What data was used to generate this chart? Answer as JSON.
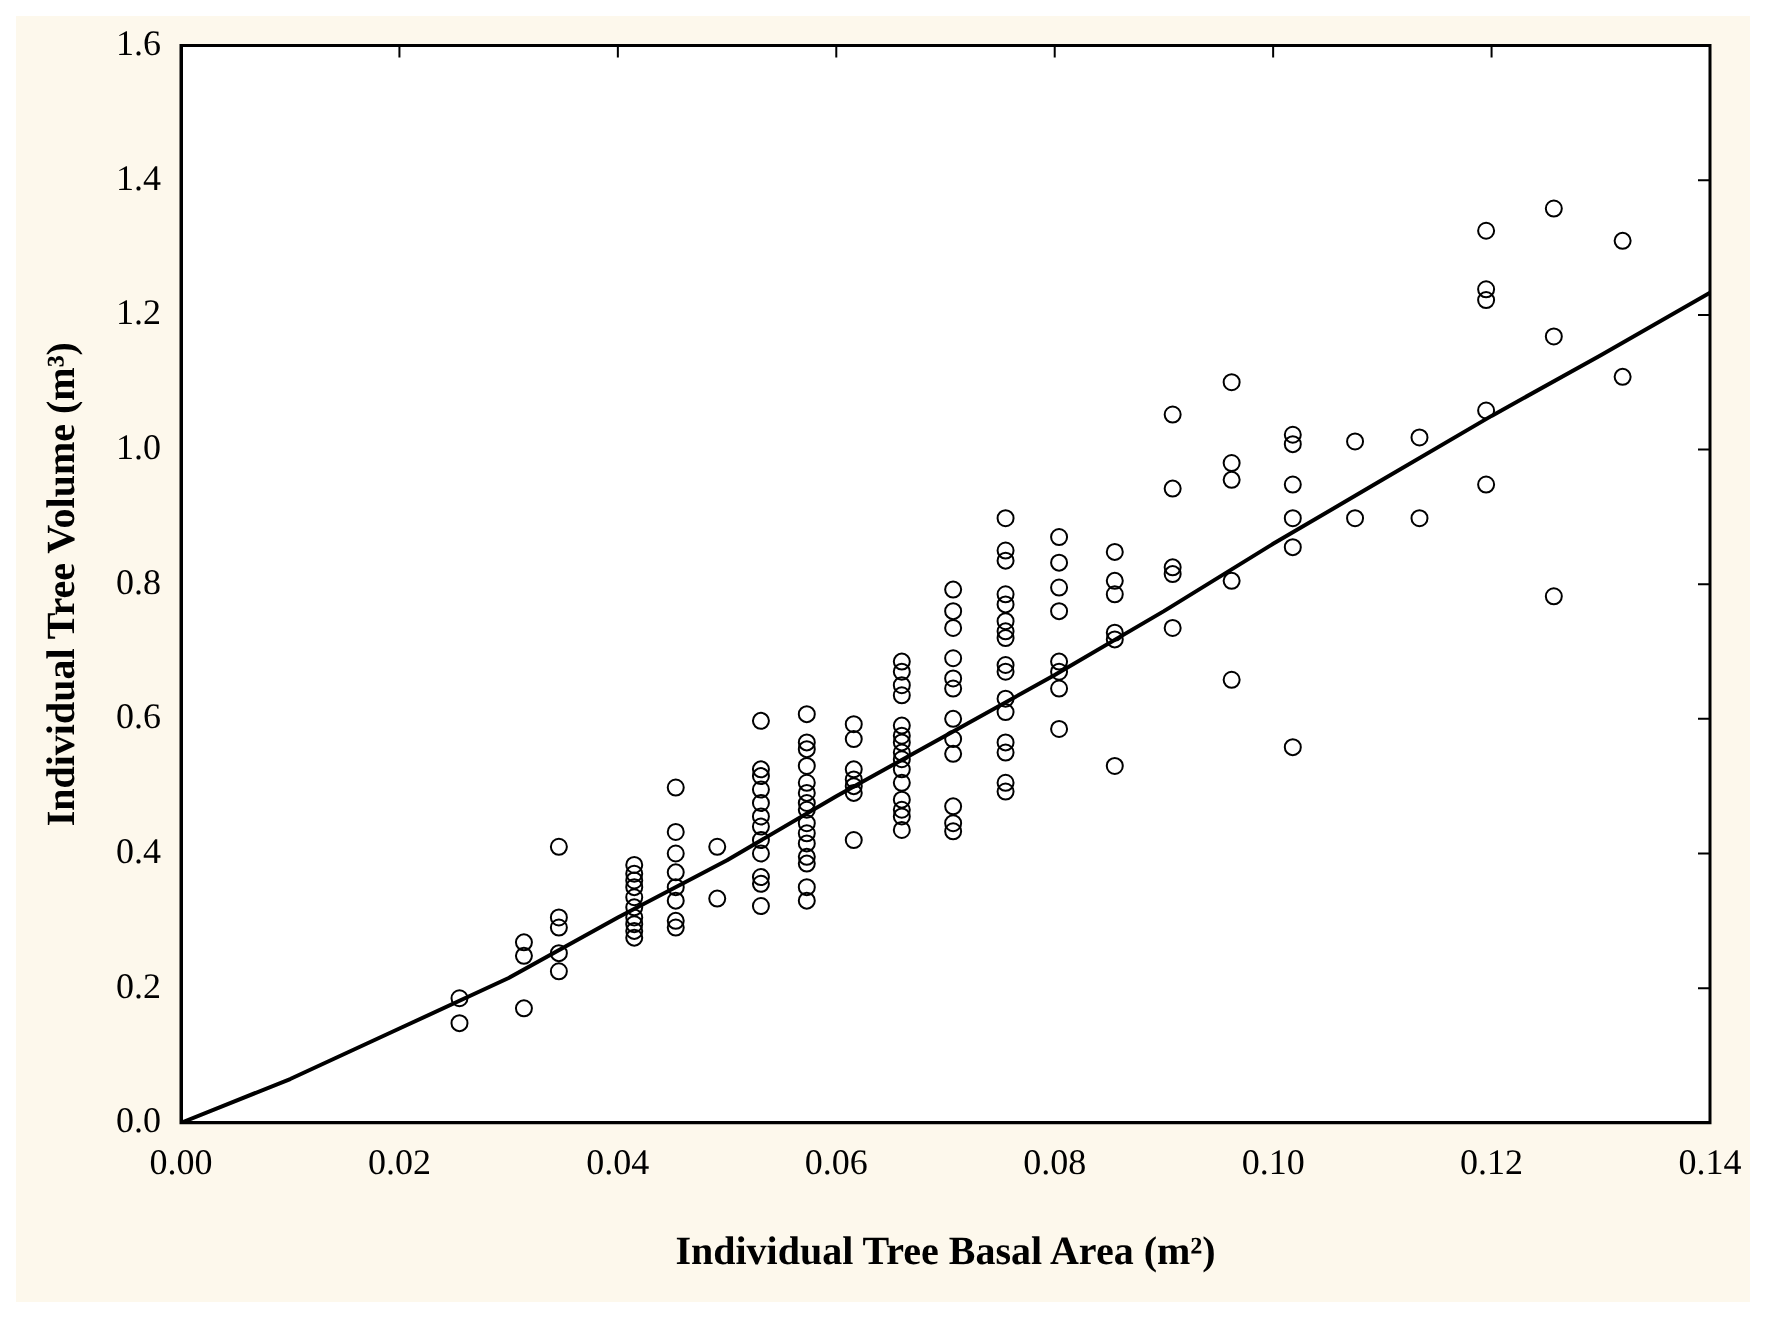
{
  "chart_data": {
    "type": "scatter",
    "xlabel": "Individual Tree Basal Area (m²)",
    "ylabel": "Individual Tree Volume (m³)",
    "xlim": [
      0,
      0.14
    ],
    "xticks": [
      {
        "value": 0,
        "label": "0.00"
      },
      {
        "value": 0.02,
        "label": "0.02"
      },
      {
        "value": 0.04,
        "label": "0.04"
      },
      {
        "value": 0.06,
        "label": "0.06"
      },
      {
        "value": 0.08,
        "label": "0.08"
      },
      {
        "value": 0.1,
        "label": "0.10"
      },
      {
        "value": 0.12,
        "label": "0.12"
      },
      {
        "value": 0.14,
        "label": "0.14"
      }
    ],
    "ylim": [
      0,
      1.6
    ],
    "yticks": [
      {
        "value": 0,
        "label": "0.0"
      },
      {
        "value": 0.2,
        "label": "0.2"
      },
      {
        "value": 0.4,
        "label": "0.4"
      },
      {
        "value": 0.6,
        "label": "0.6"
      },
      {
        "value": 0.8,
        "label": "0.8"
      },
      {
        "value": 1,
        "label": "1.0"
      },
      {
        "value": 1.2,
        "label": "1.2"
      },
      {
        "value": 1.4,
        "label": "1.4"
      },
      {
        "value": 1.6,
        "label": "1.6"
      }
    ],
    "grid": false,
    "legend": false,
    "marker": "circle",
    "series": [
      {
        "type": "scatter",
        "color": "#000000",
        "x": [
          0.0255,
          0.0255,
          0.0314,
          0.0314,
          0.0314,
          0.0346,
          0.0346,
          0.0346,
          0.0346,
          0.0346,
          0.0415,
          0.0415,
          0.0415,
          0.0415,
          0.0415,
          0.0415,
          0.0415,
          0.0415,
          0.0415,
          0.0415,
          0.0453,
          0.0453,
          0.0453,
          0.0453,
          0.0453,
          0.0453,
          0.0453,
          0.0453,
          0.0491,
          0.0491,
          0.0531,
          0.0531,
          0.0531,
          0.0531,
          0.0531,
          0.0531,
          0.0531,
          0.0531,
          0.0531,
          0.0531,
          0.0531,
          0.0531,
          0.0573,
          0.0573,
          0.0573,
          0.0573,
          0.0573,
          0.0573,
          0.0573,
          0.0573,
          0.0573,
          0.0573,
          0.0573,
          0.0573,
          0.0573,
          0.0573,
          0.0573,
          0.0616,
          0.0616,
          0.0616,
          0.0616,
          0.0616,
          0.0616,
          0.0616,
          0.066,
          0.066,
          0.066,
          0.066,
          0.066,
          0.066,
          0.066,
          0.066,
          0.066,
          0.066,
          0.066,
          0.066,
          0.066,
          0.066,
          0.066,
          0.0707,
          0.0707,
          0.0707,
          0.0707,
          0.0707,
          0.0707,
          0.0707,
          0.0707,
          0.0707,
          0.0707,
          0.0707,
          0.0707,
          0.0755,
          0.0755,
          0.0755,
          0.0755,
          0.0755,
          0.0755,
          0.0755,
          0.0755,
          0.0755,
          0.0755,
          0.0755,
          0.0755,
          0.0755,
          0.0755,
          0.0755,
          0.0755,
          0.0804,
          0.0804,
          0.0804,
          0.0804,
          0.0804,
          0.0804,
          0.0804,
          0.0804,
          0.0855,
          0.0855,
          0.0855,
          0.0855,
          0.0855,
          0.0855,
          0.0908,
          0.0908,
          0.0908,
          0.0908,
          0.0908,
          0.0962,
          0.0962,
          0.0962,
          0.0962,
          0.0962,
          0.1018,
          0.1018,
          0.1018,
          0.1018,
          0.1018,
          0.1018,
          0.1075,
          0.1075,
          0.1134,
          0.1134,
          0.1195,
          0.1195,
          0.1195,
          0.1195,
          0.1195,
          0.1257,
          0.1257,
          0.1257,
          0.132,
          0.132
        ],
        "values": [
          0.185,
          0.148,
          0.268,
          0.248,
          0.17,
          0.41,
          0.305,
          0.29,
          0.252,
          0.225,
          0.383,
          0.37,
          0.36,
          0.35,
          0.335,
          0.32,
          0.305,
          0.295,
          0.285,
          0.275,
          0.498,
          0.432,
          0.4,
          0.372,
          0.35,
          0.33,
          0.3,
          0.29,
          0.41,
          0.333,
          0.597,
          0.525,
          0.515,
          0.495,
          0.475,
          0.455,
          0.44,
          0.42,
          0.4,
          0.365,
          0.355,
          0.322,
          0.607,
          0.565,
          0.555,
          0.53,
          0.505,
          0.49,
          0.475,
          0.465,
          0.445,
          0.43,
          0.415,
          0.395,
          0.385,
          0.35,
          0.33,
          0.592,
          0.57,
          0.525,
          0.51,
          0.5,
          0.49,
          0.42,
          0.685,
          0.67,
          0.65,
          0.635,
          0.59,
          0.575,
          0.565,
          0.55,
          0.54,
          0.525,
          0.505,
          0.48,
          0.465,
          0.455,
          0.435,
          0.792,
          0.76,
          0.735,
          0.69,
          0.66,
          0.645,
          0.6,
          0.57,
          0.548,
          0.47,
          0.445,
          0.433,
          0.898,
          0.85,
          0.835,
          0.785,
          0.77,
          0.745,
          0.73,
          0.72,
          0.68,
          0.67,
          0.63,
          0.61,
          0.565,
          0.55,
          0.505,
          0.492,
          0.87,
          0.832,
          0.795,
          0.76,
          0.685,
          0.67,
          0.645,
          0.585,
          0.848,
          0.805,
          0.785,
          0.728,
          0.718,
          0.53,
          1.052,
          0.942,
          0.825,
          0.815,
          0.735,
          1.1,
          0.98,
          0.955,
          0.805,
          0.658,
          1.022,
          1.008,
          0.948,
          0.898,
          0.855,
          0.558,
          1.012,
          0.898,
          1.018,
          0.898,
          1.325,
          1.238,
          1.222,
          1.058,
          0.948,
          1.358,
          1.168,
          0.782,
          1.31,
          1.108
        ]
      },
      {
        "type": "line",
        "color": "#000000",
        "marker": "none",
        "x": [
          0,
          0.01,
          0.02,
          0.03,
          0.04,
          0.05,
          0.06,
          0.07,
          0.08,
          0.09,
          0.1,
          0.11,
          0.12,
          0.13,
          0.14
        ],
        "values": [
          0,
          0.065,
          0.14,
          0.215,
          0.305,
          0.39,
          0.485,
          0.575,
          0.665,
          0.76,
          0.86,
          0.955,
          1.05,
          1.14,
          1.233
        ]
      }
    ]
  }
}
